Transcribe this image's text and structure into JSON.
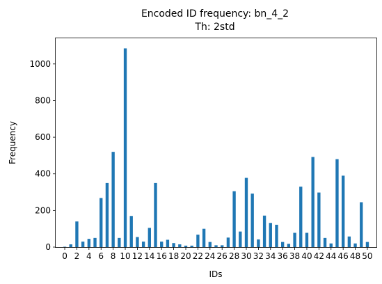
{
  "chart_data": {
    "type": "bar",
    "title": "Encoded ID frequency: bn_4_2",
    "subtitle": "Th: 2std",
    "xlabel": "IDs",
    "ylabel": "Frequency",
    "x": [
      0,
      1,
      2,
      3,
      4,
      5,
      6,
      7,
      8,
      9,
      10,
      11,
      12,
      13,
      14,
      15,
      16,
      17,
      18,
      19,
      20,
      21,
      22,
      23,
      24,
      25,
      26,
      27,
      28,
      29,
      30,
      31,
      32,
      33,
      34,
      35,
      36,
      37,
      38,
      39,
      40,
      41,
      42,
      43,
      44,
      45,
      46,
      47,
      48,
      49,
      50
    ],
    "values": [
      2,
      15,
      140,
      30,
      45,
      50,
      268,
      350,
      520,
      50,
      1085,
      170,
      55,
      30,
      105,
      350,
      30,
      40,
      22,
      15,
      8,
      8,
      68,
      100,
      28,
      10,
      10,
      52,
      305,
      85,
      378,
      292,
      42,
      172,
      132,
      122,
      28,
      18,
      78,
      330,
      78,
      492,
      298,
      50,
      20,
      480,
      390,
      58,
      20,
      245,
      28
    ],
    "xticks": [
      "0",
      "2",
      "4",
      "6",
      "8",
      "10",
      "12",
      "14",
      "16",
      "18",
      "20",
      "22",
      "24",
      "26",
      "28",
      "30",
      "32",
      "34",
      "36",
      "38",
      "40",
      "42",
      "44",
      "46",
      "48",
      "50"
    ],
    "yticks": [
      "0",
      "200",
      "400",
      "600",
      "800",
      "1000"
    ],
    "xlim": [
      -1.5,
      51.5
    ],
    "ylim": [
      0,
      1140
    ],
    "bar_color": "#1f77b4",
    "grid": false,
    "legend": "none"
  }
}
